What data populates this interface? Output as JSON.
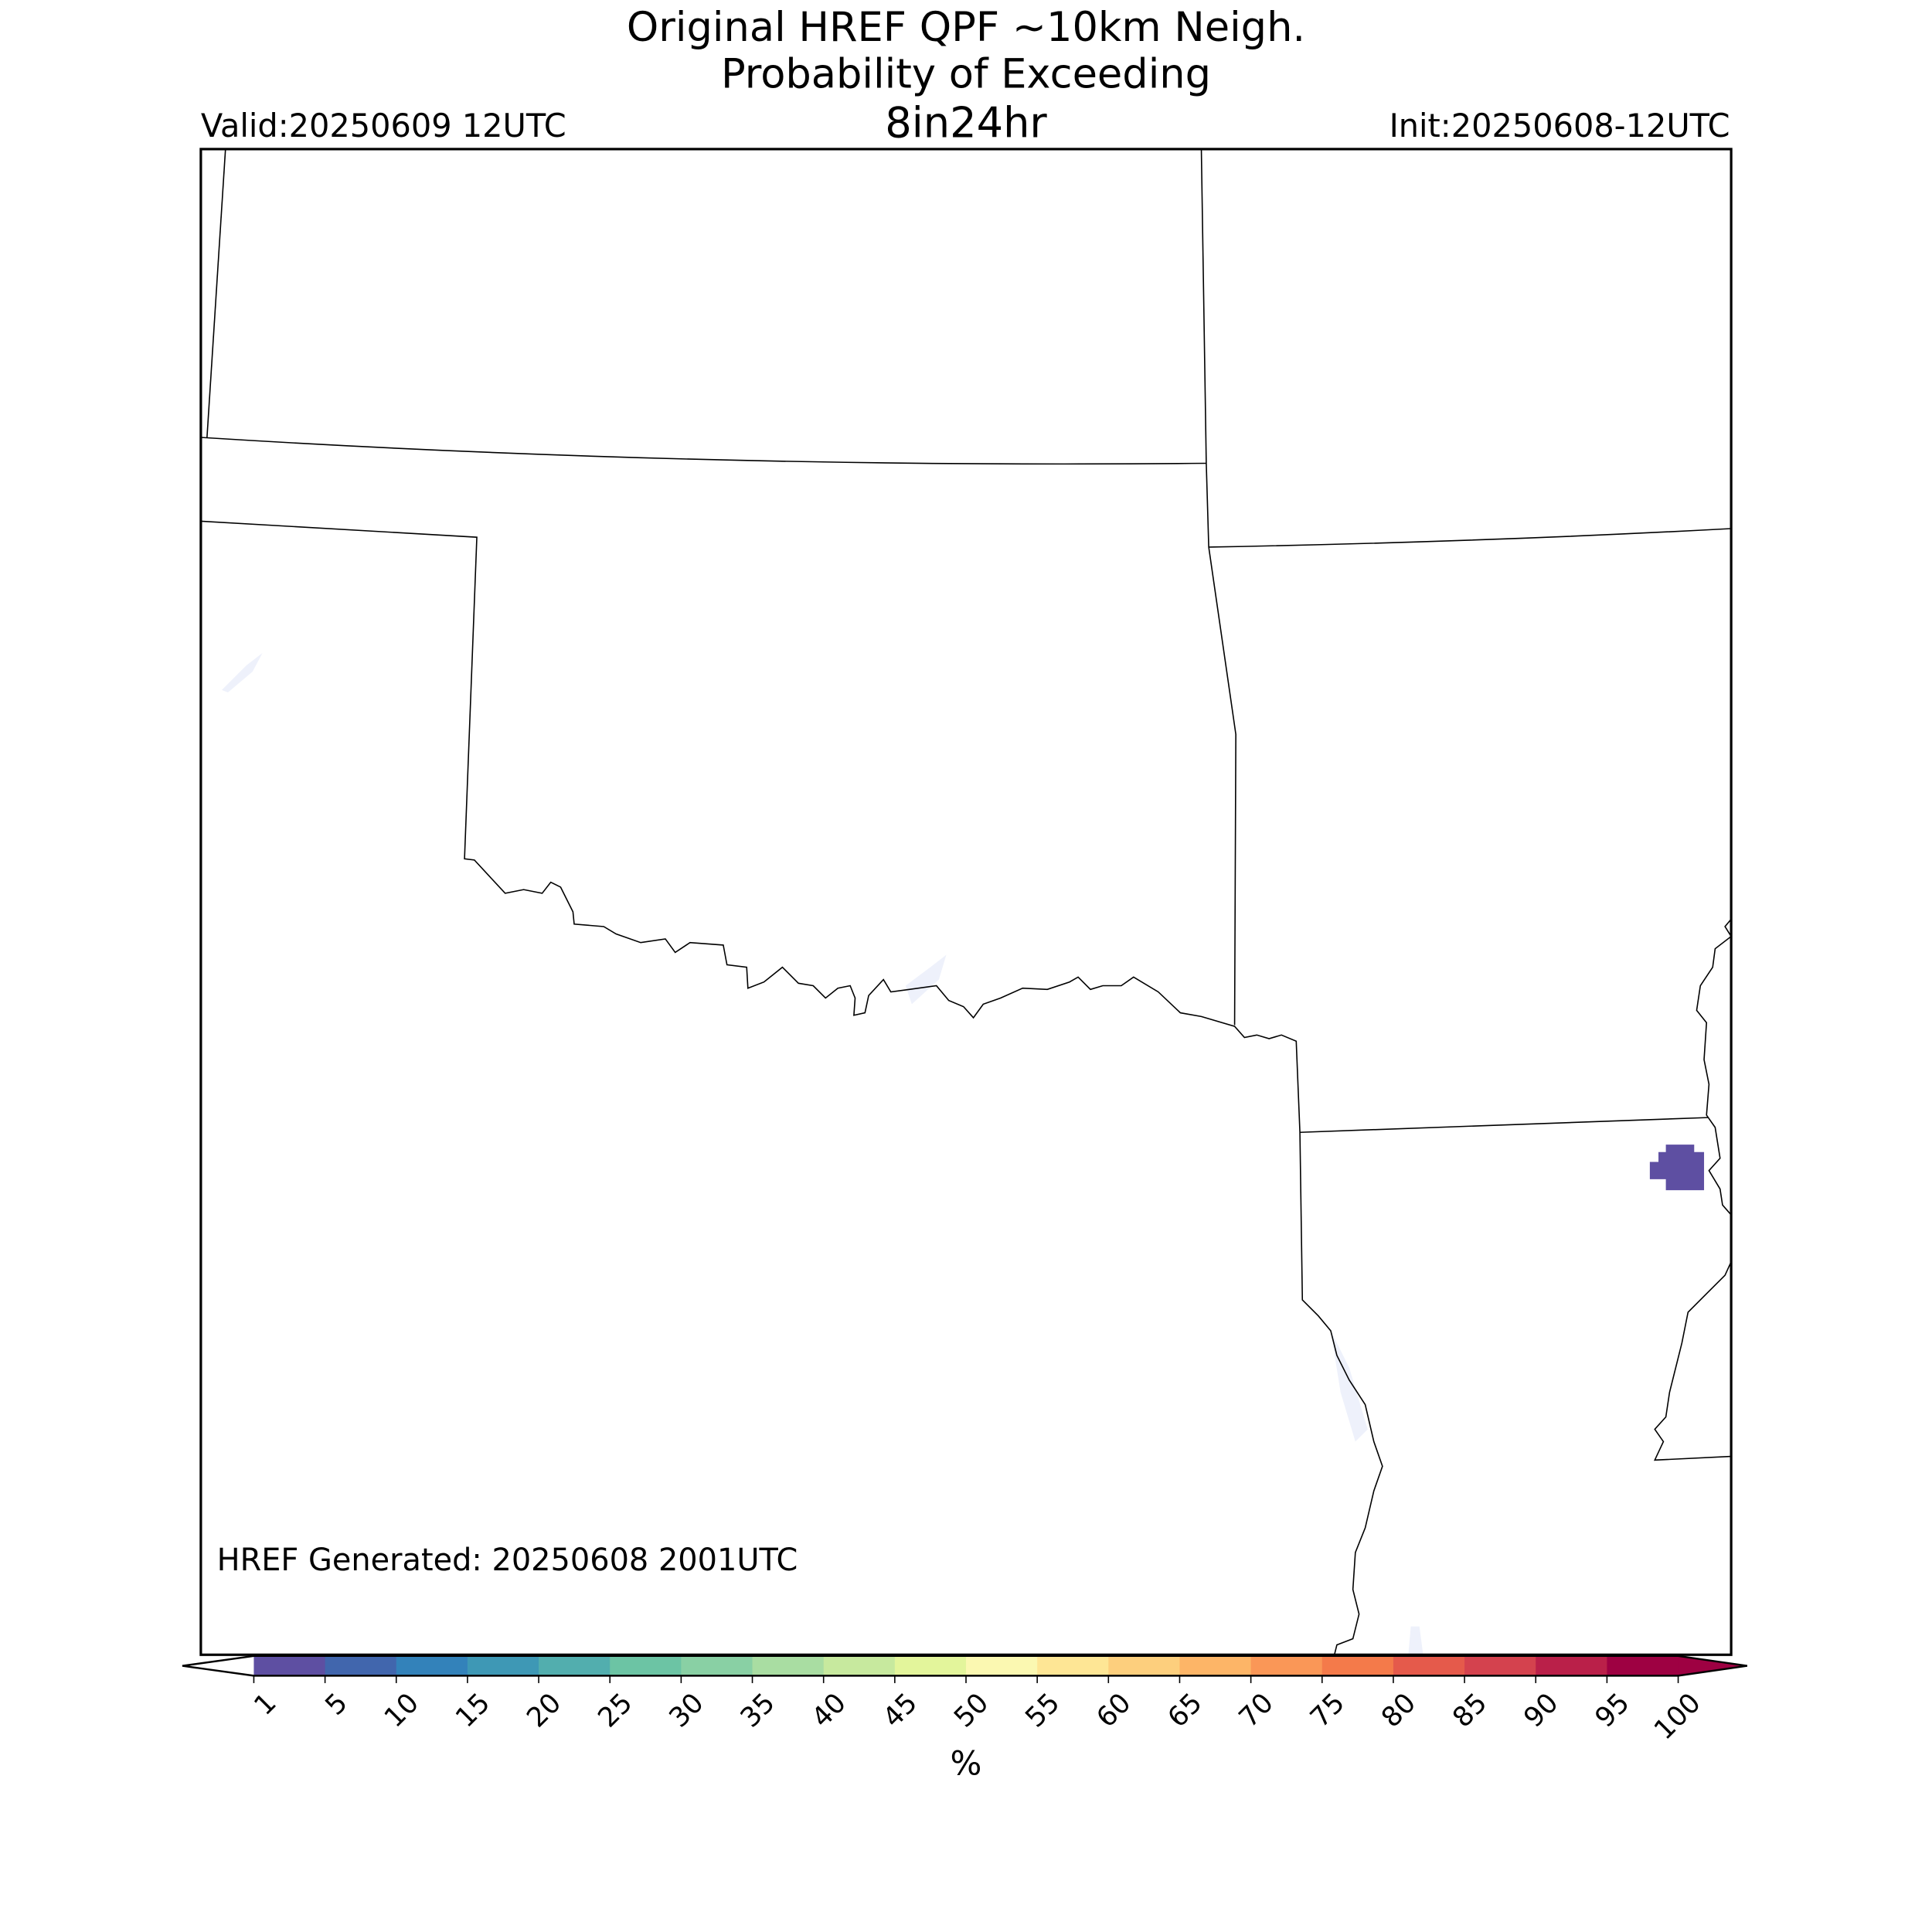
{
  "header": {
    "title_line1": "Original HREF QPF ~10km Neigh.",
    "title_line2": "Probability of Exceeding",
    "threshold": "8in24hr",
    "valid": "Valid:20250609 12UTC",
    "init": "Init:20250608-12UTC"
  },
  "map": {
    "generated": "HREF Generated: 20250608 2001UTC"
  },
  "colorbar": {
    "label": "%",
    "ticks": [
      1,
      5,
      10,
      15,
      20,
      25,
      30,
      35,
      40,
      45,
      50,
      55,
      60,
      65,
      70,
      75,
      80,
      85,
      90,
      95,
      100
    ],
    "colors": [
      "#5e4fa2",
      "#4166ad",
      "#3382ba",
      "#3e98b5",
      "#52aeae",
      "#6cc4a4",
      "#89d0a4",
      "#a9dda2",
      "#c7e99e",
      "#e3f59b",
      "#fbf8b1",
      "#fee695",
      "#fdcf7d",
      "#fdb567",
      "#fa9757",
      "#f47a4a",
      "#e55a4b",
      "#d4424e",
      "#ba2049",
      "#9e0142"
    ],
    "under_color": "#ffffff",
    "over_color": "#9e0142"
  }
}
